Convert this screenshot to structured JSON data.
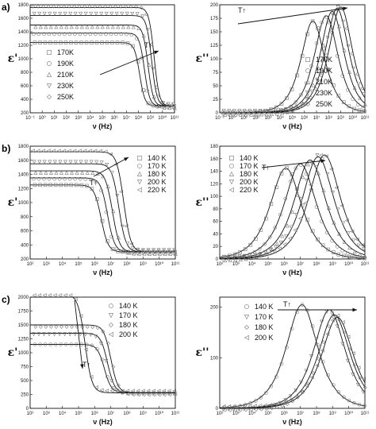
{
  "chart_data": [
    {
      "panel": "a)",
      "type": "scatter",
      "ylabel": "ε'",
      "xlabel": "ν (Hz)",
      "xlog": true,
      "xlim": [
        -1,
        11
      ],
      "ylim": [
        200,
        1800
      ],
      "yticks": [
        200,
        400,
        600,
        800,
        1000,
        1200,
        1400,
        1600,
        1800
      ],
      "arrow_label": "T↑",
      "legend": [
        "170K",
        "190K",
        "210K",
        "230K",
        "250K"
      ],
      "markers": [
        "square",
        "circle",
        "triangle-up",
        "triangle-down",
        "diamond"
      ],
      "series": [
        {
          "name": "170K",
          "eps_s": 1240,
          "eps_inf": 300,
          "log_tau": -8.9
        },
        {
          "name": "190K",
          "eps_s": 1380,
          "eps_inf": 300,
          "log_tau": -9.3
        },
        {
          "name": "210K",
          "eps_s": 1500,
          "eps_inf": 300,
          "log_tau": -9.6
        },
        {
          "name": "230K",
          "eps_s": 1640,
          "eps_inf": 300,
          "log_tau": -9.9
        },
        {
          "name": "250K",
          "eps_s": 1760,
          "eps_inf": 300,
          "log_tau": -10.1
        }
      ]
    },
    {
      "panel": "",
      "type": "scatter",
      "ylabel": "ε''",
      "xlabel": "ν (Hz)",
      "xlog": true,
      "xlim": [
        -1,
        11
      ],
      "ylim": [
        0,
        200
      ],
      "yticks": [
        0,
        25,
        50,
        75,
        100,
        125,
        150,
        175,
        200
      ],
      "arrow_label": "T↑",
      "legend": [
        "170K",
        "190K",
        "210K",
        "230K",
        "250K"
      ],
      "markers": [
        "square",
        "circle",
        "triangle-up",
        "triangle-down",
        "diamond"
      ],
      "series": [
        {
          "name": "170K",
          "peak": 170,
          "log_f_peak": 6.7
        },
        {
          "name": "190K",
          "peak": 180,
          "log_f_peak": 7.8
        },
        {
          "name": "210K",
          "peak": 188,
          "log_f_peak": 8.3
        },
        {
          "name": "230K",
          "peak": 193,
          "log_f_peak": 8.7
        },
        {
          "name": "250K",
          "peak": 196,
          "log_f_peak": 9.0
        }
      ]
    },
    {
      "panel": "b)",
      "type": "scatter",
      "ylabel": "ε'",
      "xlabel": "ν (Hz)",
      "xlog": true,
      "xlim": [
        2,
        11
      ],
      "ylim": [
        200,
        1800
      ],
      "yticks": [
        200,
        400,
        600,
        800,
        1000,
        1200,
        1400,
        1600,
        1800
      ],
      "arrow_label": "T↑",
      "legend": [
        "140 K",
        "170 K",
        "180 K",
        "200 K",
        "220 K"
      ],
      "markers": [
        "square",
        "circle",
        "triangle-up",
        "triangle-down",
        "triangle-left"
      ],
      "series": [
        {
          "name": "140 K",
          "eps_s": 1250,
          "eps_inf": 300,
          "log_tau": -7.2
        },
        {
          "name": "170 K",
          "eps_s": 1350,
          "eps_inf": 300,
          "log_tau": -7.6
        },
        {
          "name": "180 K",
          "eps_s": 1450,
          "eps_inf": 300,
          "log_tau": -7.9
        },
        {
          "name": "200 K",
          "eps_s": 1550,
          "eps_inf": 300,
          "log_tau": -8.3
        },
        {
          "name": "220 K",
          "eps_s": 1720,
          "eps_inf": 300,
          "log_tau": -8.6
        }
      ]
    },
    {
      "panel": "",
      "type": "scatter",
      "ylabel": "ε''",
      "xlabel": "ν (Hz)",
      "xlog": true,
      "xlim": [
        2,
        11
      ],
      "ylim": [
        0,
        180
      ],
      "yticks": [
        0,
        20,
        40,
        60,
        80,
        100,
        120,
        140,
        160,
        180
      ],
      "arrow_label": "T↑",
      "legend": [
        "140 K",
        "170 K",
        "180 K",
        "200 K",
        "220 K"
      ],
      "markers": [
        "square",
        "circle",
        "triangle-up",
        "triangle-down",
        "triangle-left"
      ],
      "series": [
        {
          "name": "140 K",
          "peak": 145,
          "log_f_peak": 6.1
        },
        {
          "name": "170 K",
          "peak": 152,
          "log_f_peak": 7.0
        },
        {
          "name": "180 K",
          "peak": 158,
          "log_f_peak": 7.6
        },
        {
          "name": "200 K",
          "peak": 163,
          "log_f_peak": 8.1
        },
        {
          "name": "220 K",
          "peak": 166,
          "log_f_peak": 8.5
        }
      ]
    },
    {
      "panel": "c)",
      "type": "scatter",
      "ylabel": "ε'",
      "xlabel": "ν (Hz)",
      "xlog": true,
      "xlim": [
        2,
        11
      ],
      "ylim": [
        0,
        2000
      ],
      "yticks": [
        0,
        250,
        500,
        750,
        1000,
        1250,
        1500,
        1750,
        2000
      ],
      "arrow_label": "T↑",
      "legend": [
        "140 K",
        "170 K",
        "180 K",
        "200 K"
      ],
      "markers": [
        "circle",
        "triangle-down",
        "diamond",
        "triangle-left"
      ],
      "series": [
        {
          "name": "140 K",
          "eps_s": 1150,
          "eps_inf": 280,
          "log_tau": -7.4
        },
        {
          "name": "170 K",
          "eps_s": 1350,
          "eps_inf": 280,
          "log_tau": -7.6
        },
        {
          "name": "180 K",
          "eps_s": 1500,
          "eps_inf": 280,
          "log_tau": -7.8
        },
        {
          "name": "200 K",
          "eps_s": 2050,
          "eps_inf": 280,
          "log_tau": -6.2
        }
      ]
    },
    {
      "panel": "",
      "type": "scatter",
      "ylabel": "ε''",
      "xlabel": "ν (Hz)",
      "xlog": true,
      "xlim": [
        2,
        11
      ],
      "ylim": [
        0,
        220
      ],
      "yticks": [
        0,
        100,
        200
      ],
      "arrow_label": "T↑",
      "legend": [
        "140 K",
        "170 K",
        "180 K",
        "200 K"
      ],
      "markers": [
        "circle",
        "triangle-down",
        "diamond",
        "triangle-left"
      ],
      "series": [
        {
          "name": "140 K",
          "peak": 205,
          "log_f_peak": 7.1
        },
        {
          "name": "170 K",
          "peak": 195,
          "log_f_peak": 8.8
        },
        {
          "name": "180 K",
          "peak": 185,
          "log_f_peak": 9.1
        },
        {
          "name": "200 K",
          "peak": 180,
          "log_f_peak": 9.3
        }
      ]
    }
  ]
}
